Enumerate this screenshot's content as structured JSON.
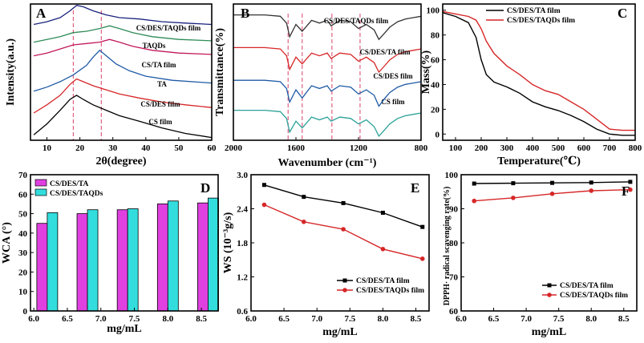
{
  "chart_data": [
    {
      "panel": "A",
      "type": "line",
      "xlabel": "2θ(degree)",
      "ylabel": "Intensity(a.u.)",
      "xlim": [
        5,
        60
      ],
      "xticks": [
        "10",
        "20",
        "30",
        "40",
        "50",
        "60"
      ],
      "yticks_shown": false,
      "reference_lines_x": [
        18,
        26.5
      ],
      "series": [
        {
          "name": "CS film",
          "color": "#000000",
          "x": [
            6,
            10,
            14,
            17,
            19,
            21,
            24,
            28,
            32,
            38,
            45,
            52,
            60
          ],
          "y": [
            0.04,
            0.12,
            0.22,
            0.3,
            0.33,
            0.3,
            0.26,
            0.22,
            0.18,
            0.14,
            0.09,
            0.05,
            0.02
          ]
        },
        {
          "name": "CS/DES film",
          "color": "#d62728",
          "x": [
            6,
            10,
            14,
            17,
            19,
            21,
            24,
            28,
            32,
            38,
            45,
            52,
            60
          ],
          "y": [
            0.2,
            0.26,
            0.33,
            0.41,
            0.45,
            0.43,
            0.4,
            0.37,
            0.34,
            0.31,
            0.28,
            0.26,
            0.24
          ]
        },
        {
          "name": "TA",
          "color": "#1f5aa6",
          "x": [
            6,
            10,
            14,
            18,
            22,
            24,
            26,
            28,
            31,
            35,
            40,
            48,
            60
          ],
          "y": [
            0.36,
            0.39,
            0.43,
            0.48,
            0.55,
            0.61,
            0.66,
            0.62,
            0.56,
            0.51,
            0.47,
            0.44,
            0.42
          ]
        },
        {
          "name": "CS/TA film",
          "color": "#c2185b",
          "x": [
            6,
            10,
            14,
            18,
            22,
            26,
            29,
            32,
            36,
            42,
            50,
            60
          ],
          "y": [
            0.62,
            0.64,
            0.67,
            0.7,
            0.71,
            0.72,
            0.74,
            0.72,
            0.69,
            0.66,
            0.64,
            0.63
          ]
        },
        {
          "name": "TAQDs",
          "color": "#2e8b57",
          "x": [
            6,
            10,
            14,
            18,
            22,
            26,
            29,
            32,
            36,
            42,
            50,
            60
          ],
          "y": [
            0.72,
            0.74,
            0.76,
            0.79,
            0.8,
            0.82,
            0.84,
            0.82,
            0.79,
            0.76,
            0.74,
            0.73
          ]
        },
        {
          "name": "CS/DES/TAQDs film",
          "color": "#1a237e",
          "x": [
            6,
            10,
            14,
            17,
            19,
            21,
            24,
            28,
            32,
            38,
            45,
            52,
            60
          ],
          "y": [
            0.85,
            0.87,
            0.9,
            0.95,
            0.99,
            0.98,
            0.95,
            0.92,
            0.9,
            0.89,
            0.87,
            0.86,
            0.85
          ]
        }
      ]
    },
    {
      "panel": "B",
      "type": "line",
      "xlabel": "Wavenumber (cm⁻¹)",
      "ylabel": "Transmittance(%)",
      "xlim": [
        2000,
        800
      ],
      "xticks": [
        "2000",
        "1600",
        "1200",
        "800"
      ],
      "yticks_shown": false,
      "reference_lines_x": [
        1650,
        1560,
        1370,
        1190
      ],
      "series": [
        {
          "name": "CS film",
          "color": "#2aa198",
          "x": [
            2000,
            1800,
            1700,
            1660,
            1640,
            1600,
            1560,
            1500,
            1450,
            1400,
            1375,
            1320,
            1250,
            1200,
            1150,
            1100,
            1070,
            1030,
            1000,
            950,
            900,
            850,
            800
          ],
          "y": [
            0.22,
            0.22,
            0.21,
            0.16,
            0.06,
            0.14,
            0.09,
            0.17,
            0.15,
            0.17,
            0.14,
            0.17,
            0.16,
            0.12,
            0.15,
            0.1,
            0.03,
            0.08,
            0.12,
            0.16,
            0.18,
            0.19,
            0.2
          ]
        },
        {
          "name": "CS/DES film",
          "color": "#1f5aa6",
          "x": [
            2000,
            1800,
            1700,
            1660,
            1640,
            1600,
            1560,
            1500,
            1450,
            1400,
            1375,
            1320,
            1250,
            1200,
            1150,
            1100,
            1070,
            1030,
            1000,
            950,
            900,
            850,
            800
          ],
          "y": [
            0.44,
            0.44,
            0.43,
            0.38,
            0.28,
            0.37,
            0.31,
            0.4,
            0.38,
            0.4,
            0.36,
            0.4,
            0.39,
            0.34,
            0.37,
            0.33,
            0.25,
            0.31,
            0.35,
            0.39,
            0.41,
            0.42,
            0.43
          ]
        },
        {
          "name": "CS/DES/TA film",
          "color": "#d62728",
          "x": [
            2000,
            1800,
            1700,
            1660,
            1640,
            1600,
            1560,
            1500,
            1450,
            1400,
            1375,
            1320,
            1250,
            1200,
            1150,
            1100,
            1070,
            1030,
            1000,
            950,
            900,
            850,
            800
          ],
          "y": [
            0.68,
            0.68,
            0.67,
            0.62,
            0.52,
            0.61,
            0.56,
            0.64,
            0.62,
            0.64,
            0.6,
            0.64,
            0.63,
            0.58,
            0.61,
            0.57,
            0.5,
            0.55,
            0.59,
            0.63,
            0.65,
            0.66,
            0.67
          ]
        },
        {
          "name": "CS/DES/TAQDs film",
          "color": "#333333",
          "x": [
            2000,
            1800,
            1700,
            1660,
            1640,
            1600,
            1560,
            1500,
            1450,
            1400,
            1375,
            1320,
            1250,
            1200,
            1150,
            1100,
            1070,
            1030,
            1000,
            950,
            900,
            850,
            800
          ],
          "y": [
            0.92,
            0.92,
            0.91,
            0.86,
            0.76,
            0.85,
            0.8,
            0.88,
            0.86,
            0.88,
            0.84,
            0.88,
            0.87,
            0.82,
            0.85,
            0.81,
            0.74,
            0.79,
            0.83,
            0.87,
            0.89,
            0.9,
            0.91
          ]
        }
      ]
    },
    {
      "panel": "C",
      "type": "line",
      "xlabel": "Temperature(℃)",
      "ylabel": "Mass(%)",
      "xlim": [
        50,
        800
      ],
      "ylim": [
        -5,
        105
      ],
      "xticks": [
        100,
        200,
        300,
        400,
        500,
        600,
        700,
        800
      ],
      "yticks": [
        0,
        20,
        40,
        60,
        80,
        100
      ],
      "legend": "top-right",
      "series": [
        {
          "name": "CS/DES/TA film",
          "color": "#000000",
          "x": [
            50,
            100,
            150,
            180,
            200,
            220,
            250,
            300,
            350,
            400,
            450,
            500,
            550,
            600,
            650,
            700,
            750,
            800
          ],
          "y": [
            98,
            95,
            90,
            78,
            60,
            48,
            42,
            38,
            33,
            26,
            22,
            19,
            15,
            10,
            4,
            0,
            -1,
            -1
          ]
        },
        {
          "name": "CS/DES/TAQDs film",
          "color": "#d62728",
          "x": [
            50,
            100,
            150,
            180,
            200,
            220,
            250,
            300,
            350,
            400,
            450,
            500,
            550,
            600,
            650,
            700,
            750,
            800
          ],
          "y": [
            99,
            97,
            95,
            92,
            85,
            75,
            65,
            55,
            48,
            40,
            35,
            32,
            26,
            20,
            12,
            4,
            3,
            3
          ]
        }
      ]
    },
    {
      "panel": "D",
      "type": "bar",
      "xlabel": "mg/mL",
      "ylabel": "WCA (°)",
      "ylim": [
        0,
        70
      ],
      "yticks": [
        0,
        10,
        20,
        30,
        40,
        50,
        60,
        70
      ],
      "xticks": [
        "6.0",
        "6.5",
        "7.0",
        "7.5",
        "8.0",
        "8.5"
      ],
      "categories": [
        "6.2",
        "6.8",
        "7.4",
        "8.0",
        "8.6"
      ],
      "legend": "top-left",
      "series": [
        {
          "name": "CS/DES/TA",
          "color": "#e040e0",
          "values": [
            45,
            50,
            52,
            55,
            55.5
          ]
        },
        {
          "name": "CS/DES/TAQDs",
          "color": "#33dddd",
          "values": [
            50.5,
            52,
            52.5,
            56.5,
            58
          ]
        }
      ]
    },
    {
      "panel": "E",
      "type": "line",
      "xlabel": "mg/mL",
      "ylabel": "WS (10⁻³g/s)",
      "xlim": [
        6.0,
        8.7
      ],
      "ylim": [
        0.6,
        3.0
      ],
      "xticks": [
        6.0,
        6.5,
        7.0,
        7.5,
        8.0,
        8.5
      ],
      "yticks": [
        0.6,
        1.2,
        1.8,
        2.4,
        3.0
      ],
      "legend": "bottom-right",
      "series": [
        {
          "name": "CS/DES/TA film",
          "color": "#000000",
          "x": [
            6.2,
            6.8,
            7.4,
            8.0,
            8.6
          ],
          "y": [
            2.82,
            2.61,
            2.5,
            2.33,
            2.08
          ]
        },
        {
          "name": "CS/DES/TAQDs film",
          "color": "#d62728",
          "x": [
            6.2,
            6.8,
            7.4,
            8.0,
            8.6
          ],
          "y": [
            2.47,
            2.17,
            2.04,
            1.69,
            1.52
          ]
        }
      ]
    },
    {
      "panel": "F",
      "type": "line",
      "xlabel": "mg/mL",
      "ylabel": "DPPH· radical scavenging rate(%)",
      "xlim": [
        6.0,
        8.7
      ],
      "ylim": [
        60,
        100
      ],
      "xticks": [
        6.0,
        6.5,
        7.0,
        7.5,
        8.0,
        8.5
      ],
      "yticks": [
        60,
        70,
        80,
        90,
        100
      ],
      "legend": "bottom-right",
      "series": [
        {
          "name": "CS/DES/TA film",
          "color": "#000000",
          "x": [
            6.2,
            6.8,
            7.4,
            8.0,
            8.6
          ],
          "y": [
            97.4,
            97.5,
            97.6,
            97.7,
            97.9
          ]
        },
        {
          "name": "CS/DES/TAQDs film",
          "color": "#d62728",
          "x": [
            6.2,
            6.8,
            7.4,
            8.0,
            8.6
          ],
          "y": [
            92.3,
            93.2,
            94.4,
            95.3,
            95.6
          ]
        }
      ]
    }
  ]
}
